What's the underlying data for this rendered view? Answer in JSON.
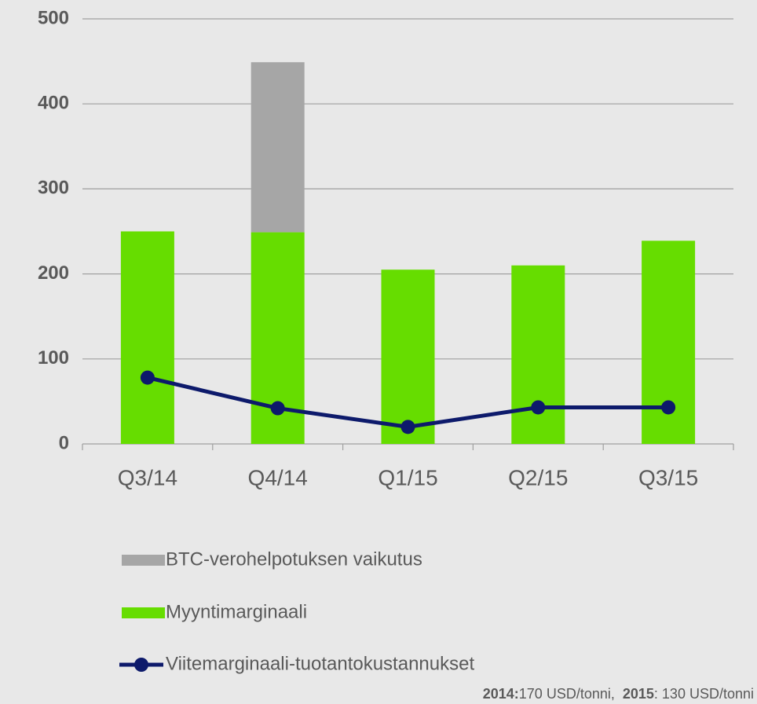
{
  "chart_data": {
    "type": "bar",
    "categories": [
      "Q3/14",
      "Q4/14",
      "Q1/15",
      "Q2/15",
      "Q3/15"
    ],
    "series": [
      {
        "name": "Myyntimarginaali",
        "color": "#66dd00",
        "type": "bar",
        "values": [
          250,
          249,
          205,
          210,
          239
        ]
      },
      {
        "name": "BTC-verohelpotuksen vaikutus",
        "color": "#a6a6a6",
        "type": "bar",
        "values": [
          null,
          200,
          null,
          null,
          null
        ]
      },
      {
        "name": "Viitemarginaali-tuotantokustannukset",
        "color": "#0d1a6b",
        "type": "line",
        "values": [
          78,
          42,
          20,
          43,
          43
        ]
      }
    ],
    "ylim": [
      0,
      500
    ],
    "yticks": [
      0,
      100,
      200,
      300,
      400,
      500
    ],
    "grid": true,
    "stacked": true,
    "note": [
      {
        "bold": "2014:",
        "text": "170 USD/tonni,"
      },
      {
        "bold": "2015",
        "text": ": 130 USD/tonni"
      }
    ]
  }
}
